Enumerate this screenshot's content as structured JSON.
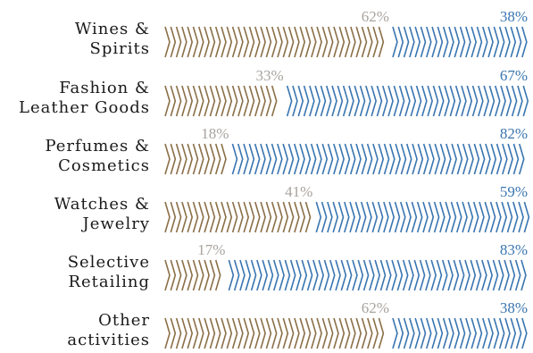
{
  "chart_data": {
    "type": "bar",
    "stacked": true,
    "orientation": "horizontal",
    "categories": [
      [
        "Wines &",
        "Spirits"
      ],
      [
        "Fashion &",
        "Leather Goods"
      ],
      [
        "Perfumes &",
        "Cosmetics"
      ],
      [
        "Watches &",
        "Jewelry"
      ],
      [
        "Selective",
        "Retailing"
      ],
      [
        "Other",
        "activities"
      ]
    ],
    "series": [
      {
        "values": [
          62,
          33,
          18,
          41,
          17,
          62
        ],
        "labels": [
          "62%",
          "33%",
          "18%",
          "41%",
          "17%",
          "62%"
        ],
        "color": "#8b6f47",
        "label_color": "#a8a39e"
      },
      {
        "values": [
          38,
          67,
          82,
          59,
          83,
          38
        ],
        "labels": [
          "38%",
          "67%",
          "82%",
          "59%",
          "83%",
          "38%"
        ],
        "color": "#3a75b0",
        "label_color": "#3a75b0"
      }
    ],
    "xlim": [
      0,
      100
    ],
    "unit": "%",
    "grid": false,
    "legend": "none"
  }
}
